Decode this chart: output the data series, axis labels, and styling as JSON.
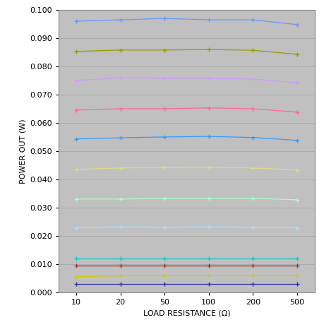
{
  "x_values": [
    10,
    20,
    50,
    100,
    200,
    500
  ],
  "series": [
    {
      "color": "#6699ff",
      "values": [
        0.096,
        0.0965,
        0.097,
        0.0965,
        0.0965,
        0.0948
      ]
    },
    {
      "color": "#999900",
      "values": [
        0.0853,
        0.0858,
        0.0858,
        0.086,
        0.0857,
        0.0843
      ]
    },
    {
      "color": "#cc99ff",
      "values": [
        0.075,
        0.076,
        0.0758,
        0.0758,
        0.0755,
        0.0742
      ]
    },
    {
      "color": "#ff6699",
      "values": [
        0.0645,
        0.065,
        0.065,
        0.0653,
        0.065,
        0.0638
      ]
    },
    {
      "color": "#3399ff",
      "values": [
        0.0543,
        0.0547,
        0.055,
        0.0552,
        0.0548,
        0.0538
      ]
    },
    {
      "color": "#dddd88",
      "values": [
        0.0435,
        0.044,
        0.0442,
        0.0443,
        0.044,
        0.0433
      ]
    },
    {
      "color": "#aaffcc",
      "values": [
        0.033,
        0.033,
        0.0332,
        0.0333,
        0.0333,
        0.0327
      ]
    },
    {
      "color": "#aaddff",
      "values": [
        0.0228,
        0.0232,
        0.023,
        0.0232,
        0.023,
        0.0228
      ]
    },
    {
      "color": "#00cccc",
      "values": [
        0.012,
        0.012,
        0.012,
        0.012,
        0.012,
        0.012
      ]
    },
    {
      "color": "#993333",
      "values": [
        0.0093,
        0.0093,
        0.0093,
        0.0093,
        0.0093,
        0.0093
      ]
    },
    {
      "color": "#cccc00",
      "values": [
        0.0055,
        0.0058,
        0.0058,
        0.0058,
        0.0058,
        0.0058
      ]
    },
    {
      "color": "#3333aa",
      "values": [
        0.003,
        0.003,
        0.003,
        0.003,
        0.003,
        0.003
      ]
    }
  ],
  "xlabel": "LOAD RESISTANCE (Ω)",
  "ylabel": "POWER OUT (W)",
  "ylim": [
    0.0,
    0.1
  ],
  "yticks": [
    0.0,
    0.01,
    0.02,
    0.03,
    0.04,
    0.05,
    0.06,
    0.07,
    0.08,
    0.09,
    0.1
  ],
  "xtick_labels": [
    "10",
    "20",
    "50",
    "100",
    "200",
    "500"
  ],
  "bg_color": "#c0c0c0",
  "fig_bg_color": "#ffffff",
  "grid_color": "#aaaaaa",
  "spine_color": "#888888"
}
